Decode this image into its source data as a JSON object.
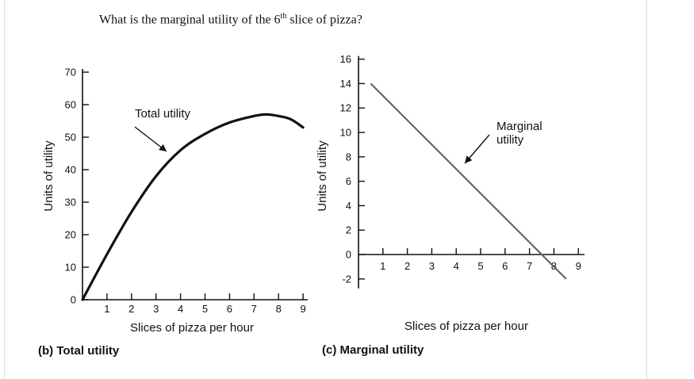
{
  "question": {
    "prefix": "What is the marginal utility of the 6",
    "superscript": "th",
    "suffix": " slice of pizza?"
  },
  "chart_data": [
    {
      "type": "line",
      "caption": "(b) Total utility",
      "xlabel": "Slices of pizza per hour",
      "ylabel": "Units of utility",
      "xlim": [
        0,
        9
      ],
      "ylim": [
        0,
        70
      ],
      "x_ticks": [
        1,
        2,
        3,
        4,
        5,
        6,
        7,
        8,
        9
      ],
      "y_ticks": [
        0,
        10,
        20,
        30,
        40,
        50,
        60,
        70
      ],
      "annotation": "Total utility",
      "series": [
        {
          "x": [
            0,
            1,
            2,
            3,
            4,
            5,
            6,
            7,
            7.5,
            8,
            8.5,
            9
          ],
          "values": [
            0,
            14,
            27,
            38,
            46,
            51,
            54.5,
            56.5,
            57,
            56.5,
            55.5,
            53
          ]
        }
      ]
    },
    {
      "type": "line",
      "caption": "(c) Marginal utility",
      "xlabel": "Slices of pizza per hour",
      "ylabel": "Units of utility",
      "xlim": [
        0,
        9
      ],
      "ylim": [
        -2,
        16
      ],
      "x_ticks": [
        1,
        2,
        3,
        4,
        5,
        6,
        7,
        8,
        9
      ],
      "y_ticks": [
        -2,
        0,
        2,
        4,
        6,
        8,
        10,
        12,
        14,
        16
      ],
      "annotation": "Marginal utility",
      "series": [
        {
          "x": [
            0.5,
            8.5
          ],
          "values": [
            14,
            -2
          ]
        }
      ]
    }
  ]
}
